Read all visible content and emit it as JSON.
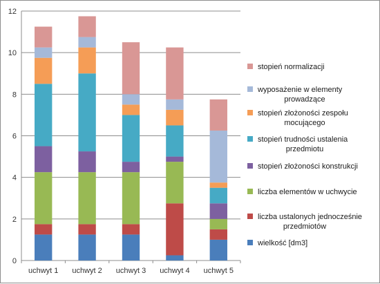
{
  "chart_data": {
    "type": "bar",
    "stacked": true,
    "categories": [
      "uchwyt 1",
      "uchwyt 2",
      "uchwyt 3",
      "uchwyt 4",
      "uchwyt 5"
    ],
    "ylim": [
      0,
      12
    ],
    "yticks": [
      "0",
      "2",
      "4",
      "6",
      "8",
      "10",
      "12"
    ],
    "grid": true,
    "legend_position": "right",
    "series": [
      {
        "name": "wielkość [dm3]",
        "color": "#4a7ebb",
        "values": [
          1.25,
          1.25,
          1.25,
          0.25,
          1.0
        ]
      },
      {
        "name": "liczba ustalonych jednocześnie przedmiotów",
        "color": "#be4b48",
        "values": [
          0.5,
          0.5,
          0.5,
          2.5,
          0.5
        ]
      },
      {
        "name": "liczba elementów w uchwycie",
        "color": "#98b954",
        "values": [
          2.5,
          2.5,
          2.5,
          2.0,
          0.5
        ]
      },
      {
        "name": "stopień złożoności konstrukcji",
        "color": "#7d60a0",
        "values": [
          1.25,
          1.0,
          0.5,
          0.25,
          0.75
        ]
      },
      {
        "name": "stopień trudności ustalenia przedmiotu",
        "color": "#46aac5",
        "values": [
          3.0,
          3.75,
          2.25,
          1.5,
          0.75
        ]
      },
      {
        "name": "stopień złożoności zespołu mocującego",
        "color": "#f59d56",
        "values": [
          1.25,
          1.25,
          0.5,
          0.75,
          0.25
        ]
      },
      {
        "name": "wyposażenie w elementy prowadzące",
        "color": "#a5b9d9",
        "values": [
          0.5,
          0.5,
          0.5,
          0.5,
          2.5
        ]
      },
      {
        "name": "stopień normalizacji",
        "color": "#d99795",
        "values": [
          1.0,
          1.0,
          2.5,
          2.5,
          1.5
        ]
      }
    ],
    "legend_lines": [
      [
        "stopień normalizacji"
      ],
      [
        "wyposażenie w elementy",
        "prowadzące"
      ],
      [
        "stopień złożoności zespołu",
        "mocującego"
      ],
      [
        "stopień trudności ustalenia",
        "przedmiotu"
      ],
      [
        "stopień złożoności konstrukcji"
      ],
      [
        "liczba elementów w uchwycie"
      ],
      [
        "liczba ustalonych jednocześnie",
        "przedmiotów"
      ],
      [
        "wielkość [dm3]"
      ]
    ],
    "legend_colors": [
      "#d99795",
      "#a5b9d9",
      "#f59d56",
      "#46aac5",
      "#7d60a0",
      "#98b954",
      "#be4b48",
      "#4a7ebb"
    ]
  }
}
